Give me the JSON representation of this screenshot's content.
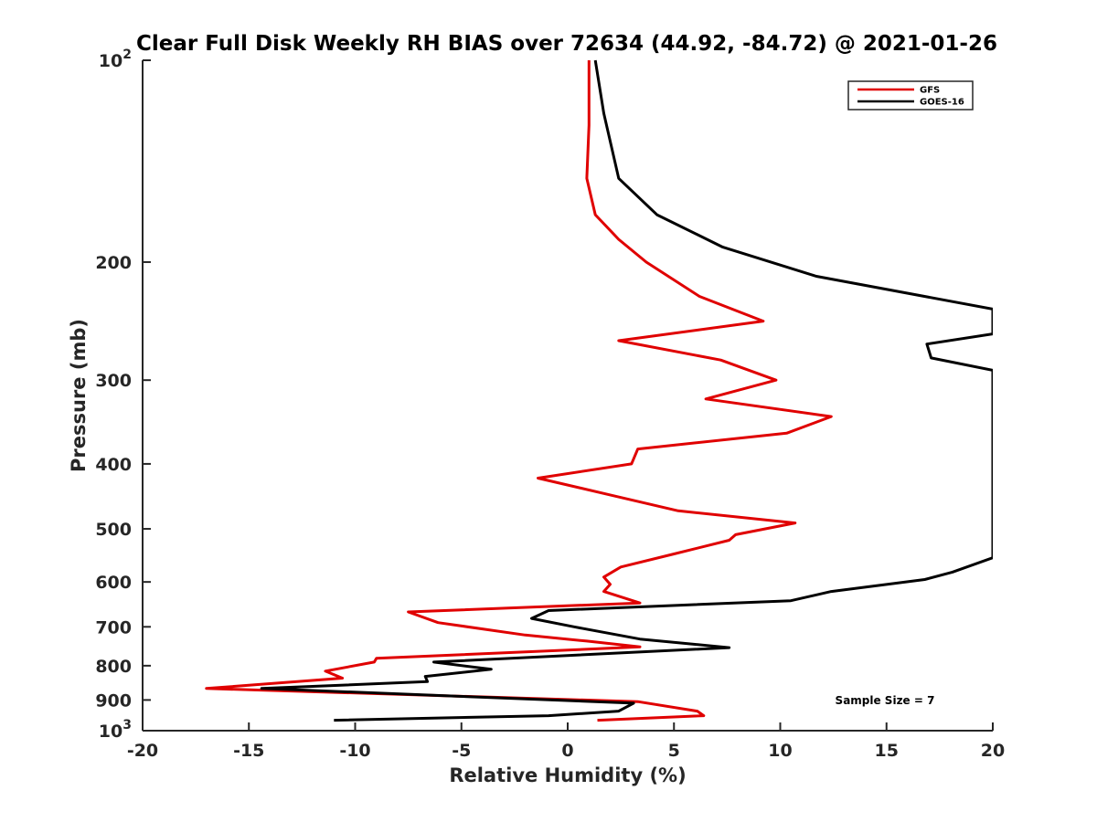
{
  "chart_data": {
    "type": "line",
    "title": "Clear Full Disk Weekly RH BIAS over 72634 (44.92, -84.72) @ 2021-01-26",
    "xlabel": "Relative Humidity (%)",
    "ylabel": "Pressure (mb)",
    "xlim": [
      -20,
      20
    ],
    "ylim": [
      100,
      1000
    ],
    "yscale": "log",
    "y_reversed": true,
    "x_ticks": [
      -20,
      -15,
      -10,
      -5,
      0,
      5,
      10,
      15,
      20
    ],
    "x_tick_labels": [
      "-20",
      "-15",
      "-10",
      "-5",
      "0",
      "5",
      "10",
      "15",
      "20"
    ],
    "y_ticks": [
      {
        "value": 100,
        "base": "10",
        "exp": "2"
      },
      {
        "value": 200,
        "label": "200"
      },
      {
        "value": 300,
        "label": "300"
      },
      {
        "value": 400,
        "label": "400"
      },
      {
        "value": 500,
        "label": "500"
      },
      {
        "value": 600,
        "label": "600"
      },
      {
        "value": 700,
        "label": "700"
      },
      {
        "value": 800,
        "label": "800"
      },
      {
        "value": 900,
        "label": "900"
      },
      {
        "value": 1000,
        "base": "10",
        "exp": "3"
      }
    ],
    "legend_position": "top-right",
    "annotation": "Sample Size = 7",
    "series": [
      {
        "name": "GFS",
        "color": "#e00000",
        "points": [
          [
            1.0,
            100
          ],
          [
            1.0,
            125
          ],
          [
            0.9,
            150
          ],
          [
            1.3,
            170
          ],
          [
            2.4,
            185
          ],
          [
            3.7,
            200
          ],
          [
            6.2,
            225
          ],
          [
            9.2,
            245
          ],
          [
            2.4,
            262
          ],
          [
            7.2,
            280
          ],
          [
            9.8,
            300
          ],
          [
            6.5,
            320
          ],
          [
            12.4,
            340
          ],
          [
            10.3,
            360
          ],
          [
            3.3,
            380
          ],
          [
            3.0,
            400
          ],
          [
            -1.4,
            420
          ],
          [
            2.0,
            445
          ],
          [
            5.2,
            470
          ],
          [
            10.7,
            490
          ],
          [
            7.9,
            510
          ],
          [
            7.6,
            520
          ],
          [
            5.0,
            545
          ],
          [
            2.5,
            570
          ],
          [
            1.7,
            590
          ],
          [
            2.0,
            605
          ],
          [
            1.7,
            620
          ],
          [
            3.4,
            645
          ],
          [
            -7.5,
            665
          ],
          [
            -6.1,
            690
          ],
          [
            -2.0,
            720
          ],
          [
            0.9,
            735
          ],
          [
            3.4,
            750
          ],
          [
            -9.0,
            780
          ],
          [
            -9.1,
            790
          ],
          [
            -11.4,
            815
          ],
          [
            -10.6,
            835
          ],
          [
            -17.0,
            865
          ],
          [
            3.3,
            905
          ],
          [
            6.1,
            935
          ],
          [
            6.4,
            950
          ],
          [
            1.4,
            965
          ]
        ]
      },
      {
        "name": "GOES-16",
        "color": "#000000",
        "points": [
          [
            1.3,
            100
          ],
          [
            1.7,
            120
          ],
          [
            2.4,
            150
          ],
          [
            4.2,
            170
          ],
          [
            7.3,
            190
          ],
          [
            11.7,
            210
          ],
          [
            20.0,
            235
          ],
          [
            20.0,
            256
          ],
          [
            16.9,
            265
          ],
          [
            17.1,
            278
          ],
          [
            20.0,
            290
          ],
          [
            20.0,
            552
          ],
          [
            18.1,
            580
          ],
          [
            16.8,
            595
          ],
          [
            12.4,
            620
          ],
          [
            10.5,
            640
          ],
          [
            -0.9,
            662
          ],
          [
            -1.7,
            680
          ],
          [
            0.3,
            700
          ],
          [
            3.4,
            730
          ],
          [
            7.6,
            752
          ],
          [
            -6.3,
            790
          ],
          [
            -3.6,
            810
          ],
          [
            -6.7,
            830
          ],
          [
            -6.6,
            845
          ],
          [
            -14.4,
            865
          ],
          [
            3.1,
            910
          ],
          [
            2.4,
            935
          ],
          [
            -0.9,
            950
          ],
          [
            -11.0,
            965
          ]
        ]
      }
    ]
  }
}
